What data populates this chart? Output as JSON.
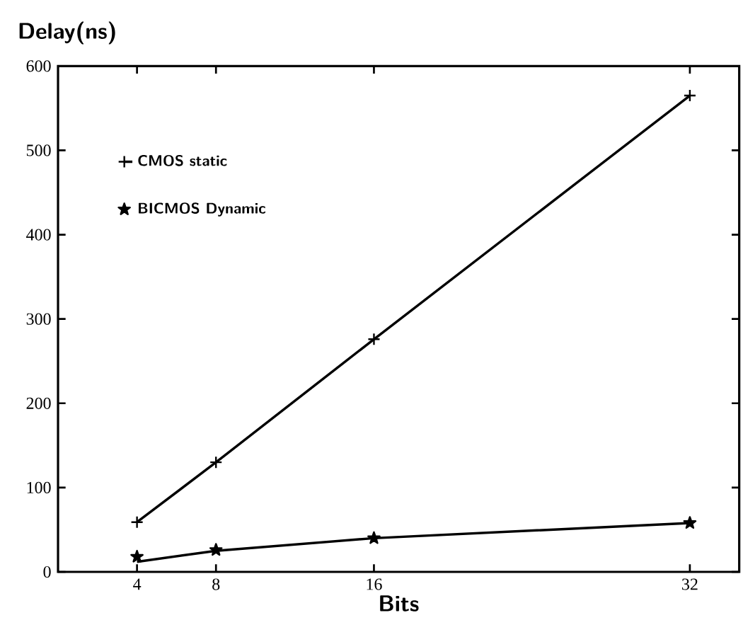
{
  "chart_data": {
    "type": "line",
    "xlabel": "Bits",
    "ylabel": "Delay(ns)",
    "xlim": [
      0,
      34.5
    ],
    "ylim": [
      0,
      600
    ],
    "xticks": [
      4,
      8,
      16,
      32
    ],
    "yticks": [
      0,
      100,
      200,
      300,
      400,
      500,
      600
    ],
    "legend": "top left",
    "grid": false,
    "series": [
      {
        "name": "CMOS static",
        "marker": "cross",
        "color": "#000000",
        "x": [
          4,
          8,
          16,
          32
        ],
        "values": [
          59,
          130,
          276,
          565
        ]
      },
      {
        "name": "BICMOS Dynamic",
        "type": "scatter",
        "marker": "star",
        "color": "#000000",
        "x": [
          4,
          8,
          16,
          32
        ],
        "values": [
          18,
          26,
          40,
          58
        ]
      },
      {
        "marker": "none",
        "color": "#000000",
        "x": [
          4,
          8,
          16,
          32
        ],
        "values": [
          12,
          25,
          40,
          58
        ]
      }
    ]
  }
}
